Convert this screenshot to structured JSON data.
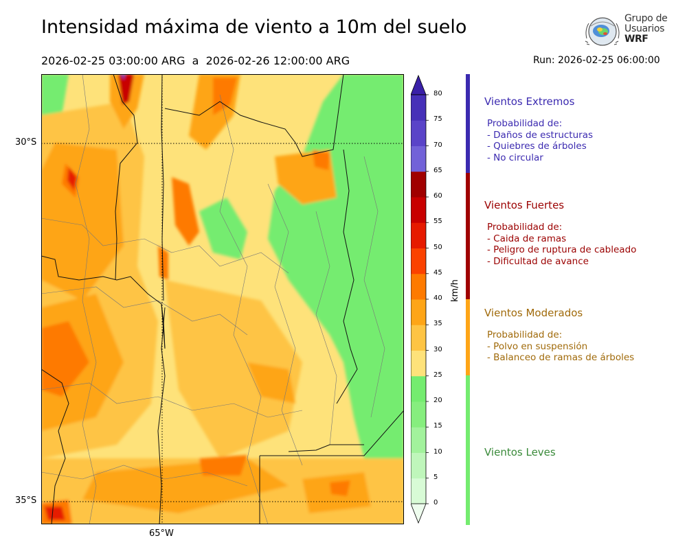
{
  "title": "Intensidad máxima de viento a 10m del suelo",
  "subtitle": "2026-02-25 03:00:00 ARG  a  2026-02-26 12:00:00 ARG",
  "run": "Run: 2026-02-25 06:00:00",
  "logo": {
    "line1": "Grupo de",
    "line2": "Usuarios",
    "line3": "WRF"
  },
  "map": {
    "lat_labels": [
      "30°S",
      "35°S"
    ],
    "lon_labels": [
      "65°W"
    ]
  },
  "colorbar": {
    "unit": "km/h",
    "ticks": [
      "0",
      "5",
      "10",
      "15",
      "20",
      "25",
      "30",
      "35",
      "40",
      "45",
      "50",
      "55",
      "60",
      "65",
      "70",
      "75",
      "80"
    ],
    "colors": [
      "#eefdee",
      "#d8fbd6",
      "#bff6bb",
      "#a2f29c",
      "#86ee7e",
      "#74ec6f",
      "#fee27a",
      "#fec444",
      "#fea517",
      "#fe7a00",
      "#fb4200",
      "#e61a00",
      "#c80000",
      "#a00000",
      "#7262d8",
      "#5a44c8",
      "#4630b8"
    ],
    "top_color": "#3a20a8"
  },
  "legend": [
    {
      "title": "Vientos Extremos",
      "color": "#3b2ab0",
      "lines": [
        "Probabilidad de:",
        "- Daños de estructuras",
        "- Quiebres de árboles",
        "- No circular"
      ]
    },
    {
      "title": "Vientos Fuertes",
      "color": "#9b0000",
      "lines": [
        "Probabilidad de:",
        "- Caida de ramas",
        "- Peligro de ruptura de cableado",
        "- Dificultad de avance"
      ]
    },
    {
      "title": "Vientos Moderados",
      "color": "#a06a0a",
      "lines": [
        "Probabilidad de:",
        "- Polvo en suspensión",
        "- Balanceo de ramas de árboles"
      ]
    },
    {
      "title": "Vientos Leves",
      "color": "#3a8a3a",
      "lines": []
    }
  ]
}
